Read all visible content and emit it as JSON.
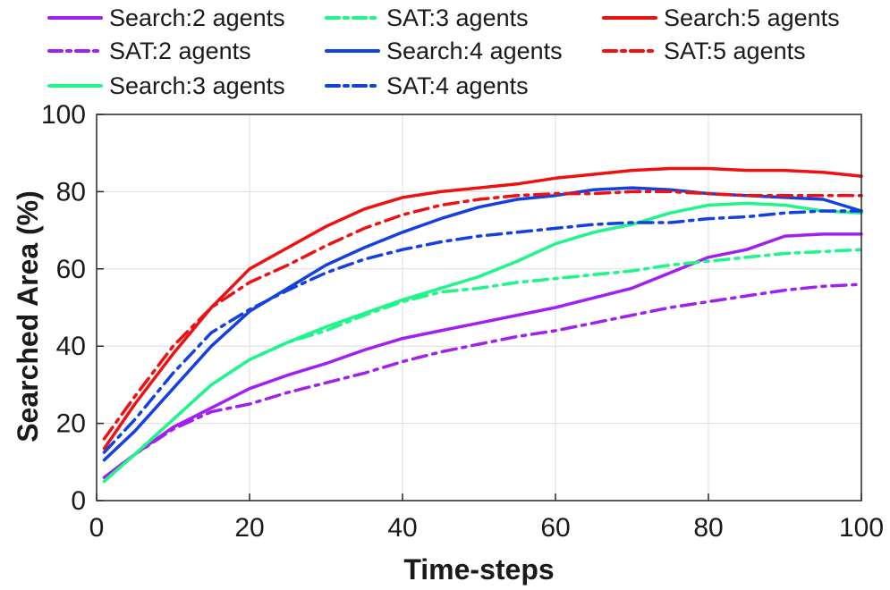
{
  "chart_data": {
    "type": "line",
    "xlabel": "Time-steps",
    "ylabel": "Searched Area (%)",
    "xlim": [
      0,
      100
    ],
    "ylim": [
      0,
      100
    ],
    "xticks": [
      0,
      20,
      40,
      60,
      80,
      100
    ],
    "yticks": [
      0,
      20,
      40,
      60,
      80,
      100
    ],
    "grid": true,
    "legend_position": "top",
    "series": [
      {
        "name": "Search:2 agents",
        "color": "#a020f0",
        "dash": "solid",
        "points": [
          [
            1,
            6
          ],
          [
            5,
            12
          ],
          [
            10,
            19
          ],
          [
            15,
            24
          ],
          [
            20,
            29
          ],
          [
            25,
            32.5
          ],
          [
            30,
            35.5
          ],
          [
            35,
            39
          ],
          [
            40,
            42
          ],
          [
            45,
            44
          ],
          [
            50,
            46
          ],
          [
            55,
            48
          ],
          [
            60,
            50
          ],
          [
            65,
            52.5
          ],
          [
            70,
            55
          ],
          [
            75,
            59
          ],
          [
            80,
            63
          ],
          [
            85,
            65
          ],
          [
            90,
            68.5
          ],
          [
            95,
            69
          ],
          [
            100,
            69
          ]
        ]
      },
      {
        "name": "SAT:2 agents",
        "color": "#a020f0",
        "dash": "dashdot",
        "points": [
          [
            1,
            6
          ],
          [
            5,
            12
          ],
          [
            10,
            18.5
          ],
          [
            15,
            23
          ],
          [
            20,
            25
          ],
          [
            25,
            28
          ],
          [
            30,
            30.5
          ],
          [
            35,
            33
          ],
          [
            40,
            36
          ],
          [
            45,
            38.5
          ],
          [
            50,
            40.5
          ],
          [
            55,
            42.5
          ],
          [
            60,
            44
          ],
          [
            65,
            46
          ],
          [
            70,
            48
          ],
          [
            75,
            50
          ],
          [
            80,
            51.5
          ],
          [
            85,
            53
          ],
          [
            90,
            54.5
          ],
          [
            95,
            55.5
          ],
          [
            100,
            56
          ]
        ]
      },
      {
        "name": "Search:3 agents",
        "color": "#1ff58a",
        "dash": "solid",
        "points": [
          [
            1,
            5
          ],
          [
            5,
            12
          ],
          [
            10,
            21
          ],
          [
            15,
            30
          ],
          [
            20,
            36.5
          ],
          [
            25,
            41
          ],
          [
            30,
            45
          ],
          [
            35,
            48.5
          ],
          [
            40,
            52
          ],
          [
            45,
            55
          ],
          [
            50,
            58
          ],
          [
            55,
            62
          ],
          [
            60,
            66.5
          ],
          [
            65,
            69.5
          ],
          [
            70,
            71.5
          ],
          [
            75,
            74.5
          ],
          [
            80,
            76.5
          ],
          [
            85,
            77
          ],
          [
            90,
            76.5
          ],
          [
            95,
            75
          ],
          [
            100,
            74.5
          ]
        ]
      },
      {
        "name": "SAT:3 agents",
        "color": "#1ff58a",
        "dash": "dashdot",
        "points": [
          [
            1,
            5
          ],
          [
            5,
            12
          ],
          [
            10,
            21
          ],
          [
            15,
            30
          ],
          [
            20,
            36.5
          ],
          [
            25,
            41
          ],
          [
            30,
            44
          ],
          [
            35,
            48
          ],
          [
            40,
            51.5
          ],
          [
            45,
            54
          ],
          [
            50,
            55
          ],
          [
            55,
            56.5
          ],
          [
            60,
            57.5
          ],
          [
            65,
            58.5
          ],
          [
            70,
            59.5
          ],
          [
            75,
            61
          ],
          [
            80,
            62
          ],
          [
            85,
            63
          ],
          [
            90,
            64
          ],
          [
            95,
            64.5
          ],
          [
            100,
            65
          ]
        ]
      },
      {
        "name": "Search:4 agents",
        "color": "#1440e0",
        "dash": "solid",
        "points": [
          [
            1,
            10.5
          ],
          [
            5,
            18
          ],
          [
            10,
            29
          ],
          [
            15,
            40
          ],
          [
            20,
            49
          ],
          [
            25,
            55
          ],
          [
            30,
            61
          ],
          [
            35,
            65.5
          ],
          [
            40,
            69.5
          ],
          [
            45,
            73
          ],
          [
            50,
            76
          ],
          [
            55,
            78
          ],
          [
            60,
            79
          ],
          [
            65,
            80.5
          ],
          [
            70,
            81
          ],
          [
            75,
            80.5
          ],
          [
            80,
            79.5
          ],
          [
            85,
            79
          ],
          [
            90,
            78.5
          ],
          [
            95,
            78
          ],
          [
            100,
            75
          ]
        ]
      },
      {
        "name": "SAT:4 agents",
        "color": "#1440e0",
        "dash": "dashdot",
        "points": [
          [
            1,
            12.5
          ],
          [
            5,
            21
          ],
          [
            10,
            33
          ],
          [
            15,
            43.5
          ],
          [
            20,
            49.5
          ],
          [
            25,
            54.5
          ],
          [
            30,
            59
          ],
          [
            35,
            62.5
          ],
          [
            40,
            65
          ],
          [
            45,
            67
          ],
          [
            50,
            68.5
          ],
          [
            55,
            69.5
          ],
          [
            60,
            70.5
          ],
          [
            65,
            71.5
          ],
          [
            70,
            72
          ],
          [
            75,
            72
          ],
          [
            80,
            73
          ],
          [
            85,
            73.5
          ],
          [
            90,
            74.5
          ],
          [
            95,
            75
          ],
          [
            100,
            75
          ]
        ]
      },
      {
        "name": "Search:5 agents",
        "color": "#ee1111",
        "dash": "solid",
        "points": [
          [
            1,
            13.5
          ],
          [
            5,
            25
          ],
          [
            10,
            38
          ],
          [
            15,
            50
          ],
          [
            20,
            60
          ],
          [
            25,
            65.5
          ],
          [
            30,
            71
          ],
          [
            35,
            75.5
          ],
          [
            40,
            78.5
          ],
          [
            45,
            80
          ],
          [
            50,
            81
          ],
          [
            55,
            82
          ],
          [
            60,
            83.5
          ],
          [
            65,
            84.5
          ],
          [
            70,
            85.5
          ],
          [
            75,
            86
          ],
          [
            80,
            86
          ],
          [
            85,
            85.5
          ],
          [
            90,
            85.5
          ],
          [
            95,
            85
          ],
          [
            100,
            84
          ]
        ]
      },
      {
        "name": "SAT:5 agents",
        "color": "#ee1111",
        "dash": "dashdot",
        "points": [
          [
            1,
            16
          ],
          [
            5,
            27
          ],
          [
            10,
            40
          ],
          [
            15,
            50
          ],
          [
            20,
            56.5
          ],
          [
            25,
            61
          ],
          [
            30,
            66
          ],
          [
            35,
            70.5
          ],
          [
            40,
            74
          ],
          [
            45,
            76.5
          ],
          [
            50,
            78
          ],
          [
            55,
            79
          ],
          [
            60,
            79.5
          ],
          [
            65,
            79.5
          ],
          [
            70,
            80
          ],
          [
            75,
            80
          ],
          [
            80,
            79.5
          ],
          [
            85,
            79
          ],
          [
            90,
            79
          ],
          [
            95,
            79
          ],
          [
            100,
            79
          ]
        ]
      }
    ]
  }
}
